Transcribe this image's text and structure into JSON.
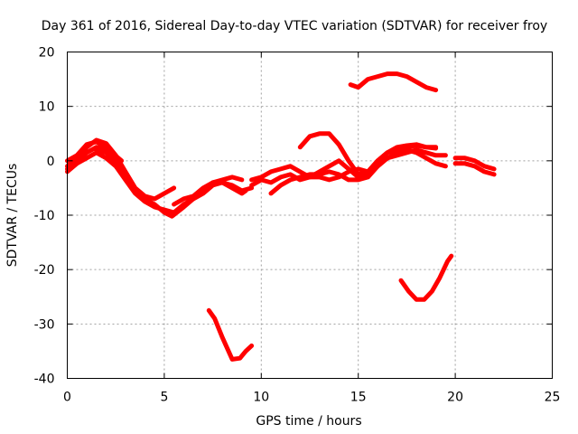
{
  "chart_data": {
    "type": "line",
    "title": "Day 361 of 2016, Sidereal Day-to-day VTEC variation (SDTVAR) for receiver froy",
    "xlabel": "GPS time / hours",
    "ylabel": "SDTVAR / TECUs",
    "xlim": [
      0,
      25
    ],
    "ylim": [
      -40,
      20
    ],
    "xticks": [
      0,
      5,
      10,
      15,
      20,
      25
    ],
    "yticks": [
      -40,
      -30,
      -20,
      -10,
      0,
      10,
      20
    ],
    "grid": true,
    "color": "#ff0000",
    "series": [
      {
        "name": "trace-1",
        "points": [
          [
            0,
            -1
          ],
          [
            0.5,
            0.5
          ],
          [
            1.0,
            2.5
          ],
          [
            1.5,
            3.8
          ],
          [
            2.0,
            3.2
          ],
          [
            2.5,
            1.0
          ],
          [
            3.0,
            -2.0
          ],
          [
            3.5,
            -5.0
          ],
          [
            4.0,
            -6.5
          ],
          [
            4.5,
            -7.0
          ],
          [
            5.0,
            -6.0
          ],
          [
            5.5,
            -5.0
          ]
        ]
      },
      {
        "name": "trace-2",
        "points": [
          [
            0,
            -1.5
          ],
          [
            0.5,
            0
          ],
          [
            1.0,
            1.5
          ],
          [
            1.5,
            2.5
          ],
          [
            2.0,
            2.0
          ],
          [
            2.5,
            0
          ],
          [
            3.0,
            -3.0
          ],
          [
            3.5,
            -5.5
          ],
          [
            4.0,
            -7.0
          ],
          [
            4.5,
            -8.0
          ],
          [
            5.0,
            -9.5
          ],
          [
            5.4,
            -10.2
          ],
          [
            6.0,
            -8.5
          ],
          [
            6.5,
            -7.0
          ],
          [
            7.0,
            -5.5
          ],
          [
            7.5,
            -4.0
          ],
          [
            8.0,
            -3.5
          ],
          [
            8.5,
            -3.0
          ],
          [
            9.0,
            -3.5
          ]
        ]
      },
      {
        "name": "trace-3",
        "points": [
          [
            0,
            -2
          ],
          [
            0.5,
            -0.5
          ],
          [
            1.0,
            0.5
          ],
          [
            1.5,
            1.5
          ],
          [
            2.0,
            0.5
          ],
          [
            2.5,
            -1.0
          ],
          [
            3.0,
            -3.5
          ],
          [
            3.5,
            -6.0
          ],
          [
            4.0,
            -7.5
          ],
          [
            4.5,
            -8.5
          ],
          [
            5.0,
            -9.0
          ],
          [
            5.5,
            -9.5
          ],
          [
            6.0,
            -8.0
          ],
          [
            7.0,
            -6.0
          ],
          [
            7.5,
            -4.5
          ],
          [
            8.0,
            -4.0
          ],
          [
            8.5,
            -4.5
          ],
          [
            9.0,
            -5.5
          ],
          [
            9.5,
            -5.0
          ]
        ]
      },
      {
        "name": "trace-4",
        "points": [
          [
            0,
            0
          ],
          [
            0.5,
            1.0
          ],
          [
            1.0,
            3.0
          ],
          [
            1.5,
            3.5
          ],
          [
            2.0,
            2.5
          ],
          [
            2.3,
            1.5
          ],
          [
            2.8,
            0
          ]
        ]
      },
      {
        "name": "trace-5",
        "points": [
          [
            1.5,
            2.0
          ],
          [
            2.0,
            1.5
          ],
          [
            2.5,
            -0.5
          ],
          [
            3.0,
            -2.5
          ]
        ]
      },
      {
        "name": "trace-6",
        "points": [
          [
            5.5,
            -8.0
          ],
          [
            6.0,
            -7.0
          ],
          [
            6.5,
            -6.5
          ],
          [
            7.0,
            -5.0
          ],
          [
            7.5,
            -4.0
          ],
          [
            8.0,
            -4.0
          ],
          [
            8.5,
            -5.0
          ],
          [
            9.0,
            -6.0
          ],
          [
            9.2,
            -5.5
          ]
        ]
      },
      {
        "name": "trace-7",
        "points": [
          [
            7.3,
            -27.5
          ],
          [
            7.6,
            -29.0
          ],
          [
            8.0,
            -32.5
          ],
          [
            8.5,
            -36.5
          ],
          [
            8.9,
            -36.3
          ],
          [
            9.2,
            -35.0
          ],
          [
            9.5,
            -34.0
          ]
        ]
      },
      {
        "name": "trace-8",
        "points": [
          [
            9.5,
            -3.5
          ],
          [
            10.0,
            -3.0
          ],
          [
            10.5,
            -2.0
          ],
          [
            11.0,
            -1.5
          ],
          [
            11.5,
            -1.0
          ],
          [
            12.0,
            -2.0
          ],
          [
            12.5,
            -3.0
          ],
          [
            13.0,
            -3.0
          ],
          [
            13.5,
            -3.5
          ],
          [
            14.0,
            -3.0
          ],
          [
            14.5,
            -2.0
          ],
          [
            15.0,
            -1.5
          ],
          [
            15.5,
            -2.0
          ],
          [
            16.0,
            0.0
          ],
          [
            16.5,
            1.5
          ],
          [
            17.0,
            2.0
          ],
          [
            17.5,
            2.5
          ],
          [
            18.0,
            2.8
          ],
          [
            18.5,
            2.5
          ],
          [
            19.0,
            2.3
          ]
        ]
      },
      {
        "name": "trace-9",
        "points": [
          [
            9.5,
            -4.5
          ],
          [
            10.0,
            -3.5
          ],
          [
            10.5,
            -4.0
          ],
          [
            11.0,
            -3.0
          ],
          [
            11.5,
            -2.5
          ],
          [
            12.0,
            -3.5
          ],
          [
            12.5,
            -3.0
          ],
          [
            13.0,
            -2.0
          ],
          [
            13.5,
            -1.0
          ],
          [
            14.0,
            0.0
          ],
          [
            14.5,
            -1.5
          ],
          [
            15.0,
            -3.0
          ],
          [
            15.5,
            -2.5
          ],
          [
            16.0,
            -1.0
          ],
          [
            16.5,
            0.5
          ],
          [
            17.0,
            1.5
          ],
          [
            17.5,
            2.0
          ],
          [
            18.0,
            1.5
          ],
          [
            18.5,
            0.5
          ],
          [
            19.0,
            -0.5
          ],
          [
            19.5,
            -1.0
          ]
        ]
      },
      {
        "name": "trace-10",
        "points": [
          [
            10.5,
            -6.0
          ],
          [
            11.0,
            -4.5
          ],
          [
            11.5,
            -3.5
          ],
          [
            12.0,
            -3.0
          ],
          [
            12.5,
            -2.5
          ],
          [
            13.0,
            -2.5
          ],
          [
            13.5,
            -2.0
          ],
          [
            14.0,
            -2.5
          ],
          [
            14.5,
            -3.5
          ],
          [
            15.0,
            -3.5
          ],
          [
            15.5,
            -3.0
          ],
          [
            16.0,
            -1.0
          ],
          [
            16.5,
            0.5
          ],
          [
            17.0,
            1.0
          ],
          [
            17.5,
            1.5
          ],
          [
            18.0,
            2.0
          ],
          [
            18.5,
            1.5
          ],
          [
            19.0,
            1.0
          ],
          [
            19.5,
            1.0
          ]
        ]
      },
      {
        "name": "trace-11",
        "points": [
          [
            12.0,
            2.5
          ],
          [
            12.5,
            4.5
          ],
          [
            13.0,
            5.0
          ],
          [
            13.5,
            5.0
          ],
          [
            14.0,
            3.0
          ],
          [
            14.5,
            0.0
          ],
          [
            15.0,
            -2.5
          ],
          [
            15.5,
            -2.0
          ],
          [
            16.0,
            0.0
          ],
          [
            16.5,
            1.5
          ],
          [
            17.0,
            2.5
          ],
          [
            17.5,
            2.8
          ],
          [
            18.0,
            3.0
          ],
          [
            18.5,
            2.5
          ],
          [
            19.0,
            2.5
          ]
        ]
      },
      {
        "name": "trace-12",
        "points": [
          [
            14.6,
            14.0
          ],
          [
            15.0,
            13.5
          ],
          [
            15.5,
            15.0
          ],
          [
            16.0,
            15.5
          ],
          [
            16.5,
            16.0
          ],
          [
            17.0,
            16.0
          ],
          [
            17.5,
            15.5
          ],
          [
            18.0,
            14.5
          ],
          [
            18.5,
            13.5
          ],
          [
            19.0,
            13.0
          ]
        ]
      },
      {
        "name": "trace-13",
        "points": [
          [
            17.2,
            -22.0
          ],
          [
            17.6,
            -24.0
          ],
          [
            18.0,
            -25.5
          ],
          [
            18.4,
            -25.5
          ],
          [
            18.8,
            -24.0
          ],
          [
            19.2,
            -21.5
          ],
          [
            19.6,
            -18.5
          ],
          [
            19.8,
            -17.5
          ]
        ]
      },
      {
        "name": "trace-14",
        "points": [
          [
            20.0,
            0.5
          ],
          [
            20.5,
            0.5
          ],
          [
            21.0,
            0.0
          ],
          [
            21.5,
            -1.0
          ],
          [
            22.0,
            -1.5
          ]
        ]
      },
      {
        "name": "trace-15",
        "points": [
          [
            20.0,
            -0.5
          ],
          [
            20.5,
            -0.5
          ],
          [
            21.0,
            -1.0
          ],
          [
            21.5,
            -2.0
          ],
          [
            22.0,
            -2.5
          ]
        ]
      }
    ]
  }
}
